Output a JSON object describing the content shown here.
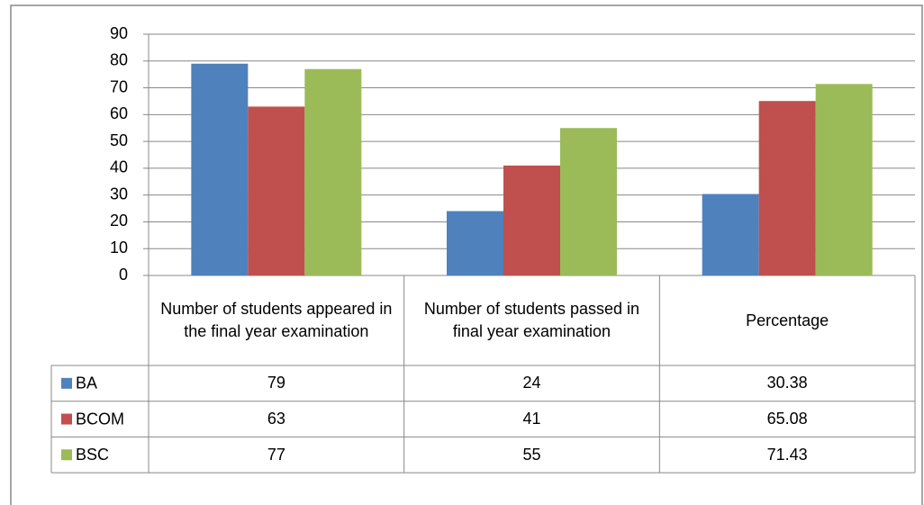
{
  "chart_data": {
    "type": "bar",
    "categories": [
      "Number of students appeared in the final year examination",
      "Number of students passed in final year examination",
      "Percentage"
    ],
    "series": [
      {
        "name": "BA",
        "color": "#4f81bd",
        "values": [
          79,
          24,
          30.38
        ]
      },
      {
        "name": "BCOM",
        "color": "#c0504d",
        "values": [
          63,
          41,
          65.08
        ]
      },
      {
        "name": "BSC",
        "color": "#9bbb59",
        "values": [
          77,
          55,
          71.43
        ]
      }
    ],
    "ylim": [
      0,
      90
    ],
    "yticks": [
      0,
      10,
      20,
      30,
      40,
      50,
      60,
      70,
      80,
      90
    ],
    "grid": true
  }
}
